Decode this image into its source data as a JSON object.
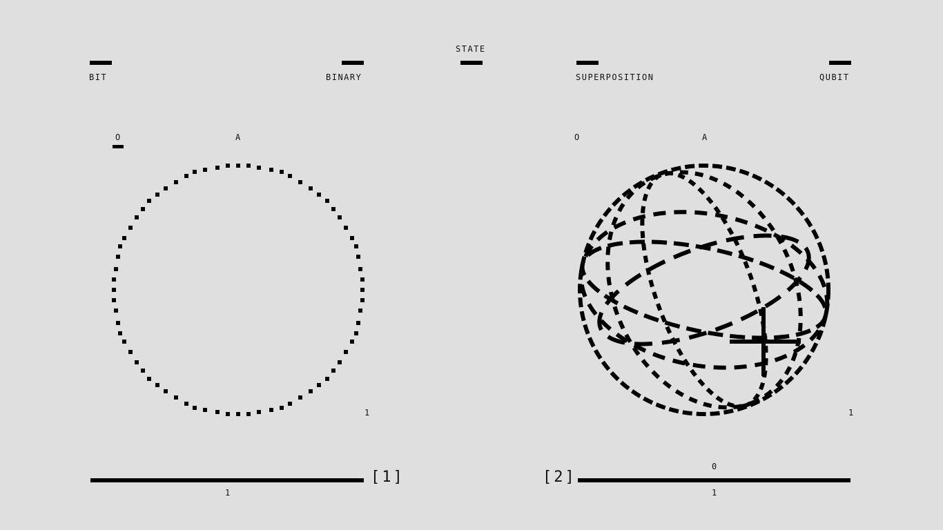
{
  "header": {
    "state": "STATE"
  },
  "left": {
    "label_left": "BIT",
    "label_right": "BINARY",
    "axis_o": "O",
    "axis_a": "A",
    "axis_1": "1",
    "index": "[1]",
    "bottom_value": "1"
  },
  "right": {
    "label_left": "SUPERPOSITION",
    "label_right": "QUBIT",
    "axis_o": "O",
    "axis_a": "A",
    "axis_1": "1",
    "index": "[2]",
    "top_value": "0",
    "bottom_value": "1"
  },
  "colors": {
    "background": "#dfdfdf",
    "ink": "#000000"
  }
}
